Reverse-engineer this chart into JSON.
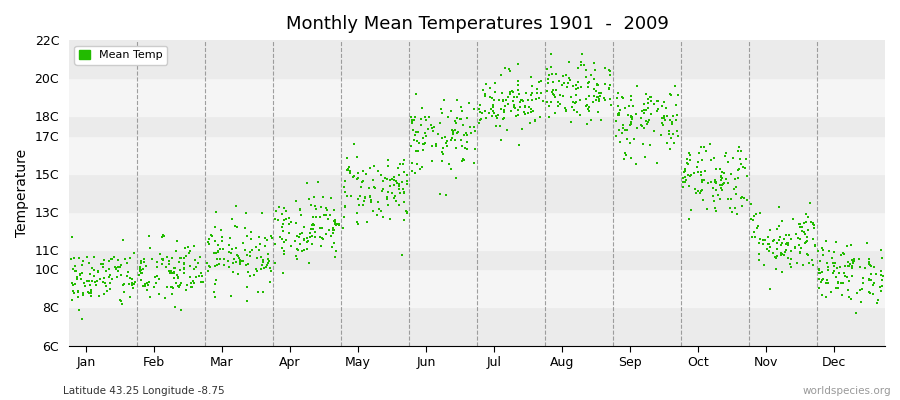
{
  "title": "Monthly Mean Temperatures 1901  -  2009",
  "ylabel": "Temperature",
  "subtitle": "Latitude 43.25 Longitude -8.75",
  "watermark": "worldspecies.org",
  "dot_color": "#22bb00",
  "dot_size": 3,
  "ylim": [
    6,
    22
  ],
  "yticks": [
    6,
    8,
    10,
    11,
    13,
    15,
    17,
    18,
    20,
    22
  ],
  "ytick_labels": [
    "6C",
    "8C",
    "10C",
    "11C",
    "13C",
    "15C",
    "17C",
    "18C",
    "20C",
    "22C"
  ],
  "months": [
    "Jan",
    "Feb",
    "Mar",
    "Apr",
    "May",
    "Jun",
    "Jul",
    "Aug",
    "Sep",
    "Oct",
    "Nov",
    "Dec"
  ],
  "month_means": [
    9.5,
    9.8,
    10.8,
    12.2,
    14.2,
    16.8,
    18.8,
    19.2,
    17.8,
    14.8,
    11.5,
    9.8
  ],
  "month_stds": [
    0.8,
    0.9,
    0.9,
    0.9,
    1.0,
    1.0,
    0.8,
    0.8,
    1.0,
    1.0,
    0.9,
    0.8
  ],
  "n_years": 109,
  "seed": 42,
  "bg_colors": [
    "#ebebeb",
    "#f5f5f5"
  ],
  "band_boundaries": [
    6,
    8,
    10,
    11,
    13,
    15,
    17,
    18,
    20,
    22
  ],
  "title_fontsize": 13,
  "axis_fontsize": 9
}
